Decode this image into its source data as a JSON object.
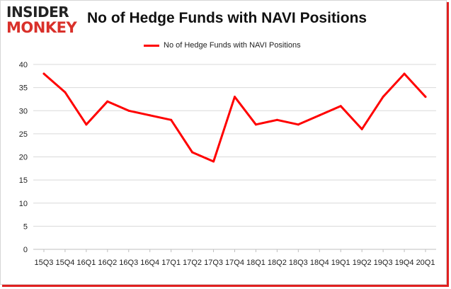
{
  "logo": {
    "line1": "INSIDER",
    "line2": "MONKEY"
  },
  "colors": {
    "series": "#ff0000",
    "grid": "#d9d9d9",
    "frame_shadow": "#e02020",
    "logo_accent": "#d9302a"
  },
  "chart_data": {
    "type": "line",
    "title": "No of Hedge Funds with NAVI Positions",
    "xlabel": "",
    "ylabel": "",
    "ylim": [
      0,
      40
    ],
    "yticks": [
      0,
      5,
      10,
      15,
      20,
      25,
      30,
      35,
      40
    ],
    "grid": "horizontal",
    "legend_position": "top-center",
    "categories": [
      "15Q3",
      "15Q4",
      "16Q1",
      "16Q2",
      "16Q3",
      "16Q4",
      "17Q1",
      "17Q2",
      "17Q3",
      "17Q4",
      "18Q1",
      "18Q2",
      "18Q3",
      "18Q4",
      "19Q1",
      "19Q2",
      "19Q3",
      "19Q4",
      "20Q1"
    ],
    "series": [
      {
        "name": "No of Hedge Funds with NAVI Positions",
        "values": [
          38,
          34,
          27,
          32,
          30,
          29,
          28,
          21,
          19,
          33,
          27,
          28,
          27,
          29,
          31,
          26,
          33,
          38,
          33
        ]
      }
    ]
  }
}
